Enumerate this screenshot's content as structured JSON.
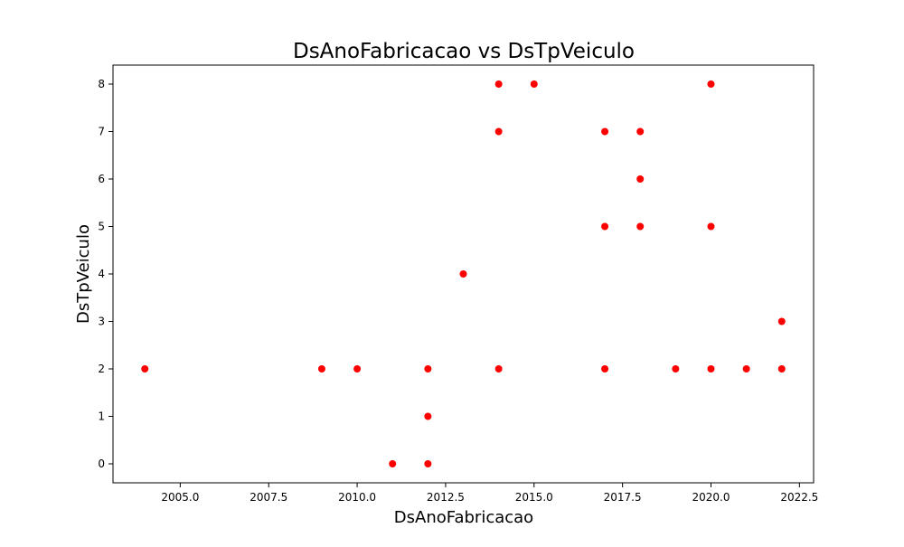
{
  "chart_data": {
    "type": "scatter",
    "title": "DsAnoFabricacao vs DsTpVeiculo",
    "xlabel": "DsAnoFabricacao",
    "ylabel": "DsTpVeiculo",
    "xlim": [
      2003.1,
      2022.9
    ],
    "ylim": [
      -0.4,
      8.4
    ],
    "xticks": [
      2005.0,
      2007.5,
      2010.0,
      2012.5,
      2015.0,
      2017.5,
      2020.0,
      2022.5
    ],
    "xtick_labels": [
      "2005.0",
      "2007.5",
      "2010.0",
      "2012.5",
      "2015.0",
      "2017.5",
      "2020.0",
      "2022.5"
    ],
    "yticks": [
      0,
      1,
      2,
      3,
      4,
      5,
      6,
      7,
      8
    ],
    "ytick_labels": [
      "0",
      "1",
      "2",
      "3",
      "4",
      "5",
      "6",
      "7",
      "8"
    ],
    "grid": false,
    "marker_color": "#ff0000",
    "points": [
      {
        "x": 2004,
        "y": 2
      },
      {
        "x": 2009,
        "y": 2
      },
      {
        "x": 2010,
        "y": 2
      },
      {
        "x": 2011,
        "y": 0
      },
      {
        "x": 2012,
        "y": 2
      },
      {
        "x": 2012,
        "y": 1
      },
      {
        "x": 2012,
        "y": 0
      },
      {
        "x": 2013,
        "y": 4
      },
      {
        "x": 2014,
        "y": 8
      },
      {
        "x": 2014,
        "y": 7
      },
      {
        "x": 2014,
        "y": 2
      },
      {
        "x": 2015,
        "y": 8
      },
      {
        "x": 2017,
        "y": 7
      },
      {
        "x": 2017,
        "y": 5
      },
      {
        "x": 2017,
        "y": 2
      },
      {
        "x": 2018,
        "y": 7
      },
      {
        "x": 2018,
        "y": 6
      },
      {
        "x": 2018,
        "y": 5
      },
      {
        "x": 2019,
        "y": 2
      },
      {
        "x": 2020,
        "y": 8
      },
      {
        "x": 2020,
        "y": 5
      },
      {
        "x": 2020,
        "y": 2
      },
      {
        "x": 2021,
        "y": 2
      },
      {
        "x": 2022,
        "y": 3
      },
      {
        "x": 2022,
        "y": 2
      }
    ]
  }
}
